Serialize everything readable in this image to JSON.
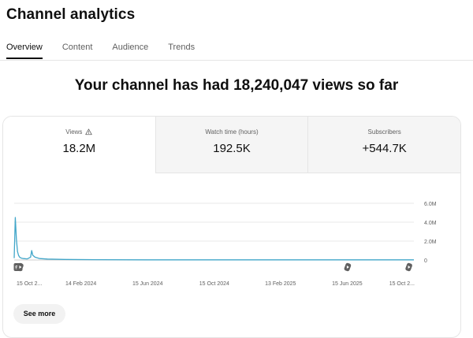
{
  "page": {
    "title": "Channel analytics"
  },
  "tabs": [
    {
      "label": "Overview",
      "active": true
    },
    {
      "label": "Content"
    },
    {
      "label": "Audience"
    },
    {
      "label": "Trends"
    }
  ],
  "headline": "Your channel has had 18,240,047 views so far",
  "metrics": [
    {
      "label": "Views",
      "value": "18.2M",
      "icon": "warning-icon"
    },
    {
      "label": "Watch time (hours)",
      "value": "192.5K"
    },
    {
      "label": "Subscribers",
      "value": "+544.7K"
    }
  ],
  "chart_data": {
    "type": "line",
    "color": "#41a6c9",
    "y_tick_labels": [
      "6.0M",
      "4.0M",
      "2.0M",
      "0"
    ],
    "ylim": [
      0,
      6000000
    ],
    "x_tick_labels": [
      "15 Oct 2...",
      "14 Feb 2024",
      "15 Jun 2024",
      "15 Oct 2024",
      "13 Feb 2025",
      "15 Jun 2025",
      "15 Oct 2..."
    ],
    "x_dates": [
      "2023-10-15",
      "2024-02-14",
      "2024-06-15",
      "2024-10-15",
      "2025-02-13",
      "2025-06-15",
      "2025-10-15"
    ],
    "x": [
      "2023-10-15",
      "2023-10-17",
      "2023-10-19",
      "2023-10-21",
      "2023-10-23",
      "2023-10-25",
      "2023-10-28",
      "2023-11-01",
      "2023-11-08",
      "2023-11-14",
      "2023-11-16",
      "2023-11-18",
      "2023-11-22",
      "2023-12-01",
      "2023-12-15",
      "2024-01-15",
      "2024-03-15",
      "2024-06-15",
      "2024-10-15",
      "2025-02-13",
      "2025-06-15",
      "2025-10-15"
    ],
    "values": [
      200000,
      4500000,
      2200000,
      900000,
      500000,
      300000,
      200000,
      150000,
      120000,
      300000,
      1000000,
      500000,
      300000,
      150000,
      100000,
      60000,
      30000,
      20000,
      20000,
      15000,
      15000,
      15000
    ],
    "markers": [
      {
        "label": "9+",
        "type": "count-marker",
        "date": "2023-10-15"
      },
      {
        "type": "shorts-icon",
        "date": "2023-10-20"
      },
      {
        "type": "shorts-icon",
        "date": "2025-06-10"
      },
      {
        "type": "shorts-icon",
        "date": "2025-09-30"
      }
    ]
  },
  "see_more": "See more"
}
